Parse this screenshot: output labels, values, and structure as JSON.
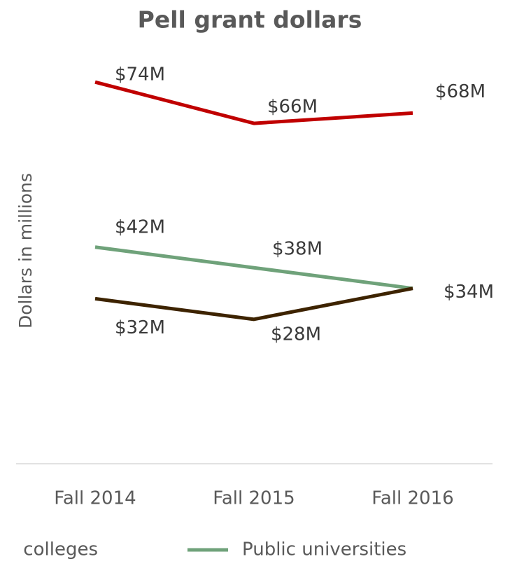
{
  "chart_data": {
    "type": "line",
    "title": "Pell grant dollars",
    "y_label": "Dollars in millions",
    "categories": [
      "Fall 2014",
      "Fall 2015",
      "Fall 2016"
    ],
    "series": [
      {
        "color": "#c00000",
        "values": [
          74,
          66,
          68
        ],
        "value_labels": [
          "$74M",
          "$66M",
          "$68M"
        ]
      },
      {
        "name": "Public universities",
        "color": "#6fa27a",
        "values": [
          42,
          38,
          34
        ],
        "value_labels": [
          "$42M",
          "$38M",
          "$34M"
        ]
      },
      {
        "name": "colleges",
        "color": "#3d2300",
        "values": [
          32,
          28,
          34
        ],
        "value_labels": [
          "$32M",
          "$28M",
          null
        ]
      }
    ],
    "ylim": [
      0,
      80
    ],
    "legend": "bottom"
  }
}
